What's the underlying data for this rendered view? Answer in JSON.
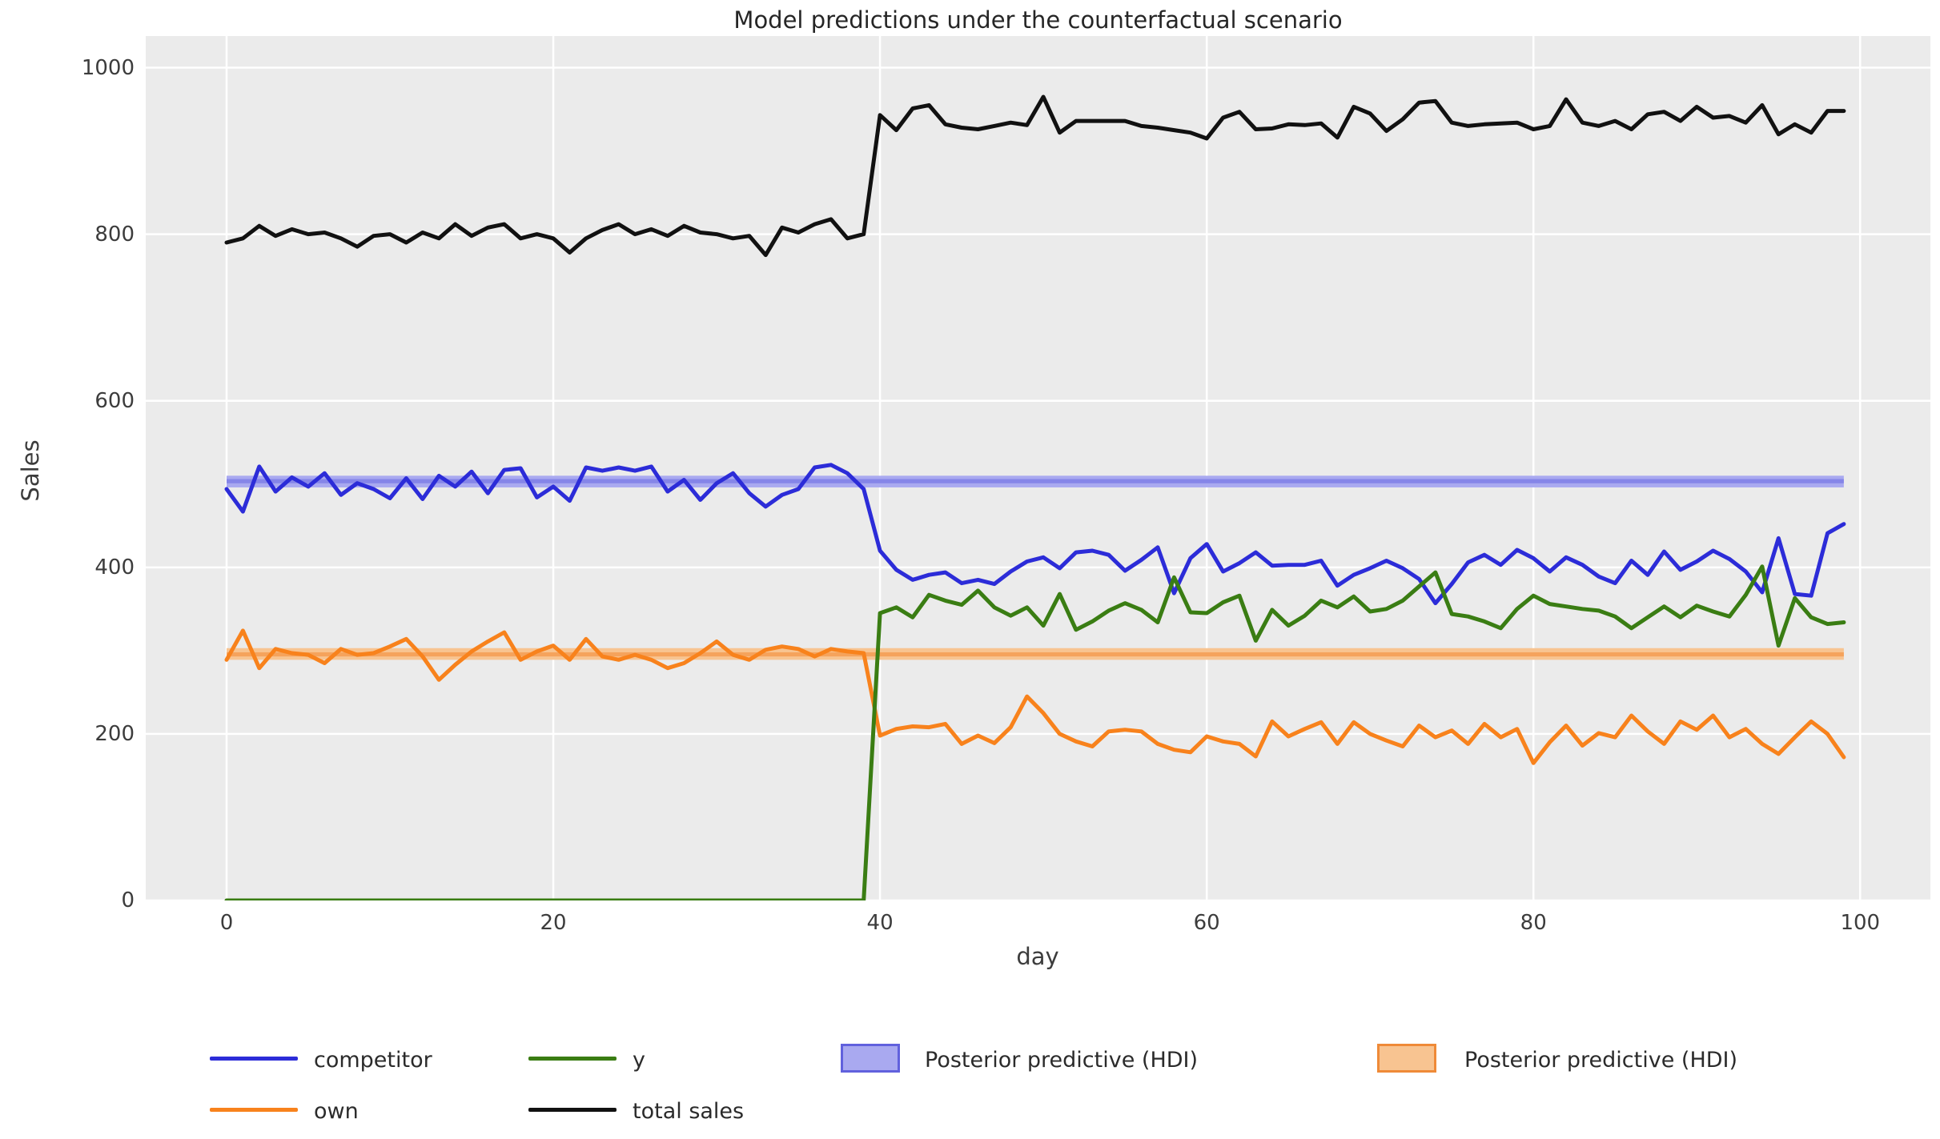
{
  "title": "Model predictions under the counterfactual scenario",
  "axes": {
    "ylabel": "Sales",
    "xlabel": "day",
    "yticks": [
      0,
      200,
      400,
      600,
      800,
      1000
    ],
    "xticks": [
      0,
      20,
      40,
      60,
      80,
      100
    ],
    "ylim": [
      0,
      1038
    ],
    "xlim": [
      -4.95,
      104.3
    ],
    "grid": "white on light-gray axes background (ggplot style)"
  },
  "colors": {
    "axes_bg": "#ebebeb",
    "grid": "#ffffff",
    "competitor": "#2c2cd8",
    "own": "#f8821c",
    "y": "#3a7d13",
    "total_sales": "#111111",
    "hdi_blue_fill": "#a9a9f0",
    "hdi_blue_core": "#8585e8",
    "hdi_blue_edge": "#6161dd",
    "hdi_orange_fill": "#f8c491",
    "hdi_orange_core": "#f5a35c",
    "hdi_orange_edge": "#ef8a38",
    "tick_text": "#3c3c3c",
    "title_text": "#262626"
  },
  "legend": {
    "entries": [
      {
        "label": "competitor",
        "type": "line",
        "color_key": "competitor"
      },
      {
        "label": "own",
        "type": "line",
        "color_key": "own"
      },
      {
        "label": "y",
        "type": "line",
        "color_key": "y"
      },
      {
        "label": "total sales",
        "type": "line",
        "color_key": "total_sales"
      },
      {
        "label": "Posterior predictive (HDI)",
        "type": "patch",
        "color_key": "hdi_blue_fill"
      },
      {
        "label": "Posterior predictive (HDI)",
        "type": "patch",
        "color_key": "hdi_orange_fill"
      }
    ]
  },
  "chart_data": {
    "type": "line",
    "x_start": 0,
    "x_step": 1,
    "n_points": 100,
    "series": [
      {
        "name": "competitor",
        "color_key": "competitor",
        "values": [
          494,
          467,
          521,
          491,
          508,
          497,
          513,
          487,
          501,
          494,
          483,
          507,
          482,
          510,
          497,
          515,
          489,
          517,
          519,
          484,
          497,
          480,
          520,
          516,
          520,
          516,
          521,
          491,
          505,
          481,
          501,
          513,
          489,
          473,
          487,
          494,
          520,
          523,
          513,
          494,
          420,
          397,
          385,
          391,
          394,
          381,
          385,
          380,
          395,
          407,
          412,
          399,
          418,
          420,
          415,
          396,
          409,
          424,
          369,
          411,
          428,
          395,
          405,
          418,
          402,
          403,
          403,
          408,
          378,
          391,
          399,
          408,
          399,
          386,
          357,
          380,
          406,
          415,
          403,
          421,
          411,
          395,
          412,
          403,
          389,
          381,
          408,
          391,
          419,
          397,
          407,
          420,
          410,
          395,
          370,
          435,
          368,
          366,
          441,
          452
        ]
      },
      {
        "name": "own",
        "color_key": "own",
        "values": [
          289,
          324,
          279,
          302,
          297,
          295,
          285,
          302,
          295,
          297,
          305,
          314,
          293,
          265,
          283,
          299,
          311,
          322,
          289,
          299,
          306,
          289,
          314,
          293,
          289,
          295,
          289,
          279,
          285,
          297,
          311,
          295,
          289,
          301,
          305,
          302,
          293,
          302,
          299,
          297,
          198,
          206,
          209,
          208,
          212,
          188,
          198,
          189,
          208,
          245,
          225,
          200,
          191,
          185,
          203,
          205,
          203,
          188,
          181,
          178,
          197,
          191,
          188,
          173,
          215,
          197,
          206,
          214,
          188,
          214,
          200,
          192,
          185,
          210,
          196,
          204,
          188,
          212,
          196,
          206,
          165,
          190,
          210,
          186,
          201,
          196,
          222,
          203,
          188,
          215,
          205,
          222,
          196,
          206,
          188,
          176,
          196,
          215,
          200,
          172
        ]
      },
      {
        "name": "y",
        "color_key": "y",
        "values": [
          0,
          0,
          0,
          0,
          0,
          0,
          0,
          0,
          0,
          0,
          0,
          0,
          0,
          0,
          0,
          0,
          0,
          0,
          0,
          0,
          0,
          0,
          0,
          0,
          0,
          0,
          0,
          0,
          0,
          0,
          0,
          0,
          0,
          0,
          0,
          0,
          0,
          0,
          0,
          0,
          345,
          352,
          340,
          367,
          360,
          355,
          372,
          352,
          342,
          352,
          330,
          368,
          325,
          335,
          348,
          357,
          349,
          334,
          388,
          346,
          345,
          358,
          366,
          312,
          349,
          330,
          342,
          360,
          352,
          365,
          347,
          350,
          360,
          377,
          394,
          344,
          341,
          335,
          327,
          350,
          366,
          356,
          353,
          350,
          348,
          341,
          327,
          340,
          353,
          340,
          354,
          347,
          341,
          367,
          401,
          306,
          363,
          340,
          332,
          334
        ]
      },
      {
        "name": "total sales",
        "color_key": "total_sales",
        "values": [
          790,
          795,
          810,
          798,
          806,
          800,
          802,
          795,
          785,
          798,
          800,
          790,
          802,
          795,
          812,
          798,
          808,
          812,
          795,
          800,
          795,
          778,
          795,
          805,
          812,
          800,
          806,
          798,
          810,
          802,
          800,
          795,
          798,
          775,
          808,
          802,
          812,
          818,
          795,
          800,
          943,
          925,
          951,
          955,
          932,
          928,
          926,
          930,
          934,
          931,
          965,
          922,
          936,
          936,
          936,
          936,
          930,
          928,
          925,
          922,
          915,
          940,
          947,
          926,
          927,
          932,
          931,
          933,
          916,
          953,
          945,
          924,
          938,
          958,
          960,
          934,
          930,
          932,
          933,
          934,
          926,
          930,
          962,
          934,
          930,
          936,
          926,
          944,
          947,
          936,
          953,
          940,
          942,
          934,
          955,
          920,
          932,
          922,
          948,
          948
        ]
      }
    ],
    "bands": [
      {
        "name": "Posterior predictive (HDI) - competitor",
        "x_from": 0,
        "x_to": 99,
        "lo": 496,
        "hi": 510,
        "core_lo": 501,
        "core_hi": 506,
        "fill_key": "hdi_blue_fill",
        "core_key": "hdi_blue_core"
      },
      {
        "name": "Posterior predictive (HDI) - own",
        "x_from": 0,
        "x_to": 99,
        "lo": 289,
        "hi": 303,
        "core_lo": 293,
        "core_hi": 298,
        "fill_key": "hdi_orange_fill",
        "core_key": "hdi_orange_core"
      }
    ]
  }
}
